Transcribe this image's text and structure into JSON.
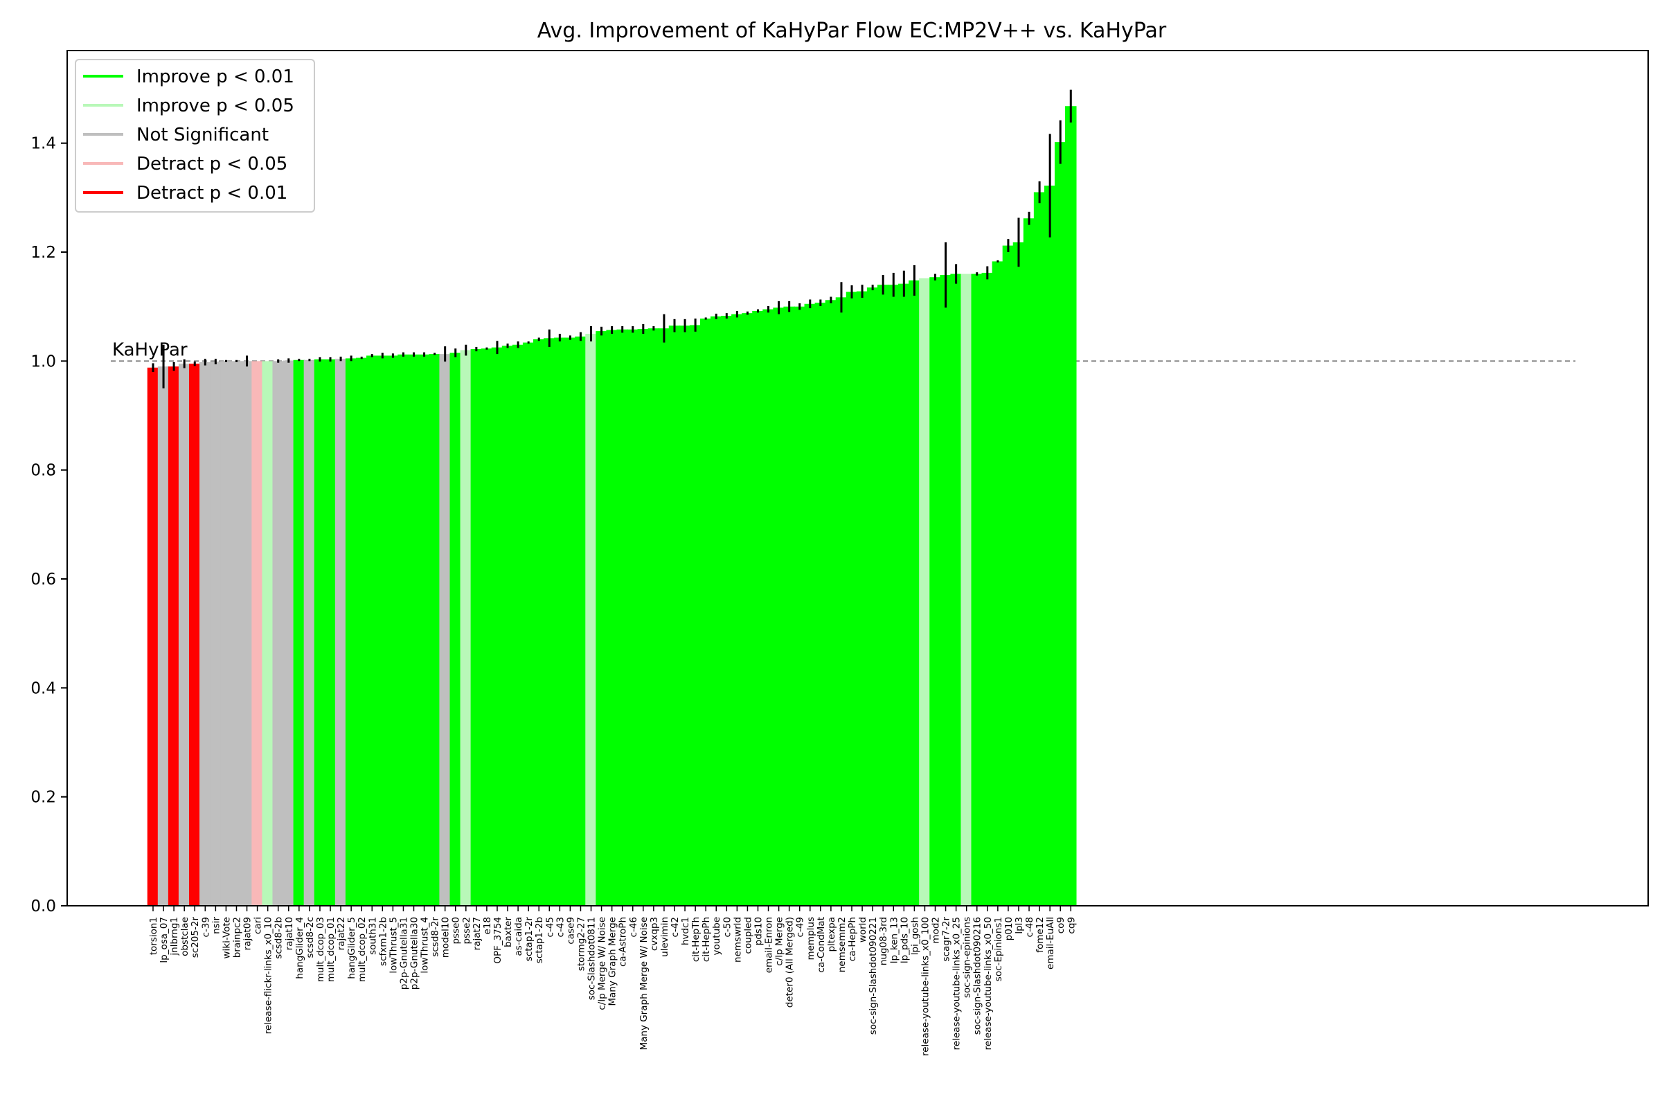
{
  "chart_data": {
    "type": "bar",
    "title": "Avg. Improvement of KaHyPar Flow EC:MP2V++ vs. KaHyPar",
    "xlabel": "",
    "ylabel": "",
    "ylim": [
      0,
      1.57
    ],
    "yticks": [
      0.0,
      0.2,
      0.4,
      0.6,
      0.8,
      1.0,
      1.2,
      1.4
    ],
    "ytick_labels": [
      "0.0",
      "0.2",
      "0.4",
      "0.6",
      "0.8",
      "1.0",
      "1.2",
      "1.4"
    ],
    "reference_line": {
      "value": 1.0,
      "label": "KaHyPar",
      "style": "dashed",
      "color": "#808080"
    },
    "legend": {
      "placement": "top-left",
      "entries": [
        {
          "key": "imp01",
          "label": "Improve p < 0.01",
          "color": "#00ff00"
        },
        {
          "key": "imp05",
          "label": "Improve p < 0.05",
          "color": "#b8f8b8"
        },
        {
          "key": "ns",
          "label": "Not Significant",
          "color": "#bfbfbf"
        },
        {
          "key": "det05",
          "label": "Detract p < 0.05",
          "color": "#f8b8b8"
        },
        {
          "key": "det01",
          "label": "Detract p < 0.01",
          "color": "#ff0000"
        }
      ]
    },
    "bars": [
      {
        "label": "torsion1",
        "value": 0.988,
        "err": 0.008,
        "sig": "det01"
      },
      {
        "label": "lp_osa_07",
        "value": 0.99,
        "err": 0.04,
        "sig": "ns"
      },
      {
        "label": "jnlbrng1",
        "value": 0.99,
        "err": 0.008,
        "sig": "det01"
      },
      {
        "label": "obstclae",
        "value": 0.995,
        "err": 0.008,
        "sig": "ns"
      },
      {
        "label": "sc205-2r",
        "value": 0.995,
        "err": 0.004,
        "sig": "det01"
      },
      {
        "label": "c-39",
        "value": 0.998,
        "err": 0.006,
        "sig": "ns"
      },
      {
        "label": "nsir",
        "value": 0.999,
        "err": 0.005,
        "sig": "ns"
      },
      {
        "label": "wiki-Vote",
        "value": 1.0,
        "err": 0.002,
        "sig": "ns"
      },
      {
        "label": "brainpc2",
        "value": 1.0,
        "err": 0.002,
        "sig": "ns"
      },
      {
        "label": "rajat09",
        "value": 1.0,
        "err": 0.01,
        "sig": "ns"
      },
      {
        "label": "cari",
        "value": 1.0,
        "err": 0,
        "sig": "det05"
      },
      {
        "label": "release-flickr-links_x0_10",
        "value": 1.0,
        "err": 0,
        "sig": "imp05"
      },
      {
        "label": "scsd8-2b",
        "value": 1.0,
        "err": 0.003,
        "sig": "ns"
      },
      {
        "label": "rajat10",
        "value": 1.001,
        "err": 0.004,
        "sig": "ns"
      },
      {
        "label": "hangGlider_4",
        "value": 1.002,
        "err": 0.002,
        "sig": "imp01"
      },
      {
        "label": "scsd8-2c",
        "value": 1.002,
        "err": 0.002,
        "sig": "ns"
      },
      {
        "label": "mult_dcop_03",
        "value": 1.003,
        "err": 0.004,
        "sig": "imp01"
      },
      {
        "label": "mult_dcop_01",
        "value": 1.003,
        "err": 0.004,
        "sig": "imp01"
      },
      {
        "label": "rajat22",
        "value": 1.004,
        "err": 0.004,
        "sig": "ns"
      },
      {
        "label": "hangGlider_5",
        "value": 1.005,
        "err": 0.005,
        "sig": "imp01"
      },
      {
        "label": "mult_dcop_02",
        "value": 1.006,
        "err": 0.002,
        "sig": "imp01"
      },
      {
        "label": "south31",
        "value": 1.01,
        "err": 0.003,
        "sig": "imp01"
      },
      {
        "label": "scfxm1-2b",
        "value": 1.01,
        "err": 0.005,
        "sig": "imp01"
      },
      {
        "label": "lowThrust_5",
        "value": 1.01,
        "err": 0.004,
        "sig": "imp01"
      },
      {
        "label": "p2p-Gnutella31",
        "value": 1.012,
        "err": 0.004,
        "sig": "imp01"
      },
      {
        "label": "p2p-Gnutella30",
        "value": 1.012,
        "err": 0.004,
        "sig": "imp01"
      },
      {
        "label": "lowThrust_4",
        "value": 1.012,
        "err": 0.004,
        "sig": "imp01"
      },
      {
        "label": "scsd8-2r",
        "value": 1.013,
        "err": 0.002,
        "sig": "imp01"
      },
      {
        "label": "model10",
        "value": 1.013,
        "err": 0.014,
        "sig": "ns"
      },
      {
        "label": "psse0",
        "value": 1.015,
        "err": 0.008,
        "sig": "imp01"
      },
      {
        "label": "psse2",
        "value": 1.02,
        "err": 0.01,
        "sig": "imp05"
      },
      {
        "label": "rajat27",
        "value": 1.022,
        "err": 0.004,
        "sig": "imp01"
      },
      {
        "label": "e18",
        "value": 1.023,
        "err": 0.002,
        "sig": "imp01"
      },
      {
        "label": "OPF_3754",
        "value": 1.025,
        "err": 0.012,
        "sig": "imp01"
      },
      {
        "label": "baxter",
        "value": 1.028,
        "err": 0.004,
        "sig": "imp01"
      },
      {
        "label": "as-caida",
        "value": 1.03,
        "err": 0.006,
        "sig": "imp01"
      },
      {
        "label": "sctap1-2r",
        "value": 1.034,
        "err": 0.002,
        "sig": "imp01"
      },
      {
        "label": "sctap1-2b",
        "value": 1.04,
        "err": 0.003,
        "sig": "imp01"
      },
      {
        "label": "c-45",
        "value": 1.042,
        "err": 0.016,
        "sig": "imp01"
      },
      {
        "label": "c-43",
        "value": 1.043,
        "err": 0.007,
        "sig": "imp01"
      },
      {
        "label": "case9",
        "value": 1.043,
        "err": 0.004,
        "sig": "imp01"
      },
      {
        "label": "stormg2-27",
        "value": 1.045,
        "err": 0.008,
        "sig": "imp01"
      },
      {
        "label": "soc-Slashdot0811",
        "value": 1.05,
        "err": 0.014,
        "sig": "imp05"
      },
      {
        "label": "c/lp Merge W/ Noise",
        "value": 1.055,
        "err": 0.008,
        "sig": "imp01"
      },
      {
        "label": "Many Graph Merge",
        "value": 1.057,
        "err": 0.007,
        "sig": "imp01"
      },
      {
        "label": "ca-AstroPh",
        "value": 1.058,
        "err": 0.006,
        "sig": "imp01"
      },
      {
        "label": "c-46",
        "value": 1.058,
        "err": 0.006,
        "sig": "imp01"
      },
      {
        "label": "Many Graph Merge W/ Noise",
        "value": 1.059,
        "err": 0.009,
        "sig": "imp01"
      },
      {
        "label": "cvxqp3",
        "value": 1.06,
        "err": 0.004,
        "sig": "imp01"
      },
      {
        "label": "ulevimin",
        "value": 1.06,
        "err": 0.026,
        "sig": "imp01"
      },
      {
        "label": "c-42",
        "value": 1.065,
        "err": 0.012,
        "sig": "imp01"
      },
      {
        "label": "hvdc1",
        "value": 1.065,
        "err": 0.012,
        "sig": "imp01"
      },
      {
        "label": "cit-HepTh",
        "value": 1.066,
        "err": 0.012,
        "sig": "imp01"
      },
      {
        "label": "cit-HepPh",
        "value": 1.078,
        "err": 0.002,
        "sig": "imp01"
      },
      {
        "label": "youtube",
        "value": 1.082,
        "err": 0.005,
        "sig": "imp01"
      },
      {
        "label": "c-50",
        "value": 1.083,
        "err": 0.005,
        "sig": "imp01"
      },
      {
        "label": "nemswrld",
        "value": 1.086,
        "err": 0.006,
        "sig": "imp01"
      },
      {
        "label": "coupled",
        "value": 1.088,
        "err": 0.003,
        "sig": "imp01"
      },
      {
        "label": "pds10",
        "value": 1.092,
        "err": 0.003,
        "sig": "imp01"
      },
      {
        "label": "email-Enron",
        "value": 1.095,
        "err": 0.006,
        "sig": "imp01"
      },
      {
        "label": "c/lp Merge",
        "value": 1.098,
        "err": 0.012,
        "sig": "imp01"
      },
      {
        "label": "deter0 (All Merged)",
        "value": 1.1,
        "err": 0.01,
        "sig": "imp01"
      },
      {
        "label": "c-49",
        "value": 1.1,
        "err": 0.006,
        "sig": "imp01"
      },
      {
        "label": "memplus",
        "value": 1.105,
        "err": 0.008,
        "sig": "imp01"
      },
      {
        "label": "ca-CondMat",
        "value": 1.107,
        "err": 0.006,
        "sig": "imp01"
      },
      {
        "label": "pltexpa",
        "value": 1.112,
        "err": 0.006,
        "sig": "imp01"
      },
      {
        "label": "nemsemm2",
        "value": 1.117,
        "err": 0.028,
        "sig": "imp01"
      },
      {
        "label": "ca-HepPh",
        "value": 1.127,
        "err": 0.012,
        "sig": "imp01"
      },
      {
        "label": "world",
        "value": 1.128,
        "err": 0.012,
        "sig": "imp01"
      },
      {
        "label": "soc-sign-Slashdot090221",
        "value": 1.135,
        "err": 0.005,
        "sig": "imp01"
      },
      {
        "label": "nug08-3rd",
        "value": 1.14,
        "err": 0.018,
        "sig": "imp01"
      },
      {
        "label": "lp_ken_13",
        "value": 1.14,
        "err": 0.022,
        "sig": "imp01"
      },
      {
        "label": "lp_pds_10",
        "value": 1.142,
        "err": 0.024,
        "sig": "imp01"
      },
      {
        "label": "lpi_gosh",
        "value": 1.148,
        "err": 0.028,
        "sig": "imp01"
      },
      {
        "label": "release-youtube-links_x0_100",
        "value": 1.152,
        "err": 0,
        "sig": "imp05"
      },
      {
        "label": "mod2",
        "value": 1.154,
        "err": 0.006,
        "sig": "imp01"
      },
      {
        "label": "scagr7-2r",
        "value": 1.158,
        "err": 0.06,
        "sig": "imp01"
      },
      {
        "label": "release-youtube-links_x0_25",
        "value": 1.16,
        "err": 0.018,
        "sig": "imp01"
      },
      {
        "label": "soc-sign-epinions",
        "value": 1.16,
        "err": 0,
        "sig": "imp05"
      },
      {
        "label": "soc-sign-Slashdot090216",
        "value": 1.16,
        "err": 0.003,
        "sig": "imp01"
      },
      {
        "label": "release-youtube-links_x0_50",
        "value": 1.162,
        "err": 0.012,
        "sig": "imp01"
      },
      {
        "label": "soc-Epinions1",
        "value": 1.183,
        "err": 0.002,
        "sig": "imp01"
      },
      {
        "label": "p010",
        "value": 1.212,
        "err": 0.012,
        "sig": "imp01"
      },
      {
        "label": "lpl3",
        "value": 1.218,
        "err": 0.045,
        "sig": "imp01"
      },
      {
        "label": "c-48",
        "value": 1.262,
        "err": 0.012,
        "sig": "imp01"
      },
      {
        "label": "fome12",
        "value": 1.31,
        "err": 0.02,
        "sig": "imp01"
      },
      {
        "label": "email-EuAll",
        "value": 1.322,
        "err": 0.095,
        "sig": "imp01"
      },
      {
        "label": "co9",
        "value": 1.402,
        "err": 0.04,
        "sig": "imp01"
      },
      {
        "label": "cq9",
        "value": 1.468,
        "err": 0.03,
        "sig": "imp01"
      }
    ]
  }
}
